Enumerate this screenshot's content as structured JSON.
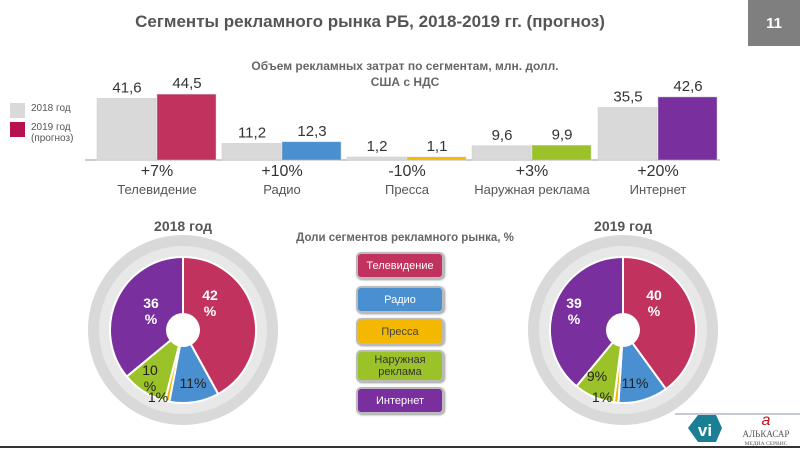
{
  "title": "Сегменты рекламного рынка РБ, 2018-2019 гг. (прогноз)",
  "page_number": "11",
  "legend": {
    "y2018": "2018 год",
    "y2019": "2019 год",
    "y2019_note": "(прогноз)"
  },
  "shares_title": "Доли сегментов рекламного рынка, %",
  "colors": {
    "grey": "#d9d9d9",
    "tv": "#c1325e",
    "radio": "#4a8fd0",
    "press": "#f5b800",
    "outdoor": "#9cc22a",
    "internet": "#7a2f9e"
  },
  "chart_data": [
    {
      "type": "bar",
      "title": "Объем рекламных затрат по сегментам, млн. долл. США с НДС",
      "categories": [
        "Телевидение",
        "Радио",
        "Пресса",
        "Наружная реклама",
        "Интернет"
      ],
      "series": [
        {
          "name": "2018 год",
          "values": [
            41.6,
            11.2,
            1.2,
            9.6,
            35.5
          ],
          "labels": [
            "41,6",
            "11,2",
            "1,2",
            "9,6",
            "35,5"
          ]
        },
        {
          "name": "2019 год (прогноз)",
          "values": [
            44.5,
            12.3,
            1.1,
            9.9,
            42.6
          ],
          "labels": [
            "44,5",
            "12,3",
            "1,1",
            "9,9",
            "42,6"
          ]
        }
      ],
      "growth": [
        "+7%",
        "+10%",
        "-10%",
        "+3%",
        "+20%"
      ]
    },
    {
      "type": "pie",
      "title": "2018 год",
      "categories": [
        "Телевидение",
        "Радио",
        "Пресса",
        "Наружная реклама",
        "Интернет"
      ],
      "values": [
        42,
        11,
        1,
        10,
        36
      ],
      "labels": [
        "42\n%",
        "11%",
        "1%",
        "10\n%",
        "36\n%"
      ]
    },
    {
      "type": "pie",
      "title": "2019 год",
      "categories": [
        "Телевидение",
        "Радио",
        "Пресса",
        "Наружная реклама",
        "Интернет"
      ],
      "values": [
        40,
        11,
        1,
        9,
        39
      ],
      "labels": [
        "40\n%",
        "11%",
        "1%",
        "9%",
        "39\n%"
      ]
    }
  ],
  "legend_boxes": [
    "Телевидение",
    "Радио",
    "Пресса",
    "Наружная реклама",
    "Интернет"
  ],
  "logos": {
    "vi": "vi",
    "alkasar": "АЛЬКАСАР",
    "alkasar_sub": "МЕДИА СЕРВИС"
  }
}
